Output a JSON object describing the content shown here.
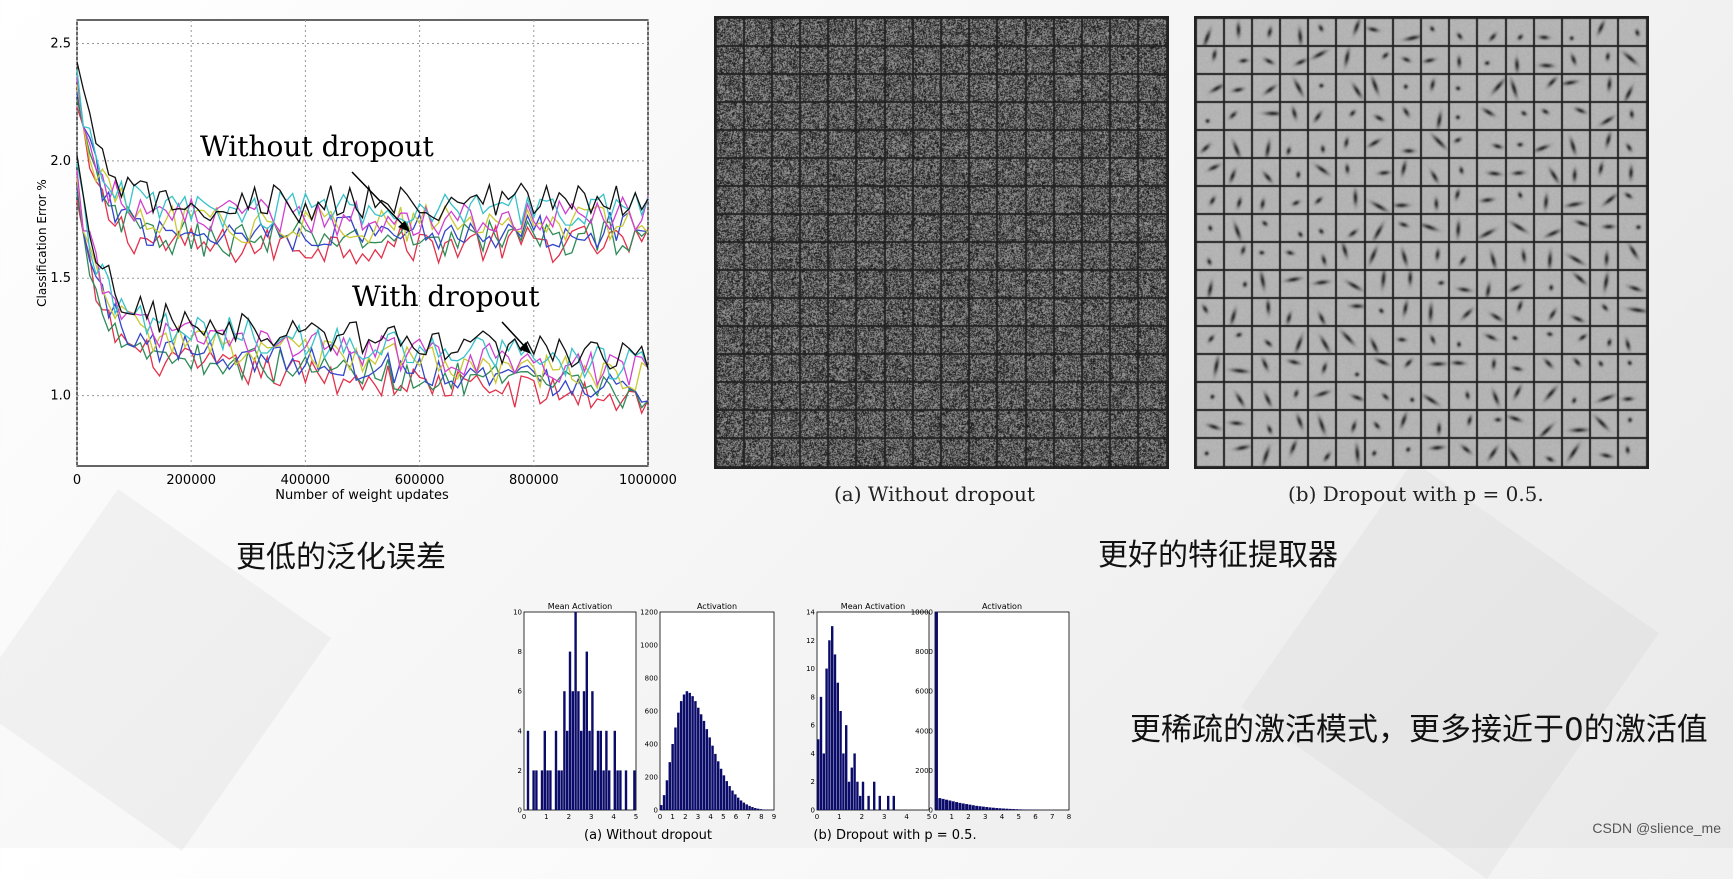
{
  "chart_data": [
    {
      "type": "line",
      "ylabel": "Classification Error %",
      "xlabel": "Number of weight updates",
      "xlim": [
        0,
        1000000
      ],
      "ylim": [
        0.7,
        2.6
      ],
      "xticks": [
        "0",
        "200000",
        "400000",
        "600000",
        "800000",
        "1000000"
      ],
      "yticks": [
        "1.0",
        "1.5",
        "2.0",
        "2.5"
      ],
      "grid": true,
      "annotations": [
        "Without dropout",
        "With dropout"
      ],
      "groups": [
        {
          "label": "Without dropout",
          "start": 2.3,
          "plateau": 1.72,
          "end": 1.74
        },
        {
          "label": "With dropout",
          "start": 1.9,
          "plateau": 1.25,
          "end": 1.07
        }
      ],
      "colors": [
        "#e2314a",
        "#2e8b57",
        "#3346c9",
        "#c9c934",
        "#d03fd0",
        "#37c2c9",
        "#111111"
      ]
    },
    {
      "type": "heatmap",
      "caption": "(a) Without dropout",
      "grid_size": [
        16,
        16
      ],
      "style": "noise"
    },
    {
      "type": "heatmap",
      "caption": "(b) Dropout with p = 0.5.",
      "grid_size": [
        16,
        16
      ],
      "style": "sparse-features"
    },
    {
      "type": "bar",
      "title": "Mean Activation",
      "xlim": [
        0,
        5
      ],
      "ylim": [
        0,
        10
      ],
      "xticks": [
        "0",
        "1",
        "2",
        "3",
        "4",
        "5"
      ],
      "yticks": [
        "0",
        "2",
        "4",
        "6",
        "8",
        "10"
      ],
      "values": [
        0,
        4,
        0,
        2,
        2,
        0,
        2,
        4,
        2,
        2,
        0,
        4,
        2,
        2,
        6,
        4,
        8,
        6,
        10,
        6,
        4,
        6,
        8,
        4,
        6,
        2,
        4,
        4,
        2,
        4,
        2,
        0,
        4,
        2,
        2,
        0,
        2,
        0,
        0,
        2
      ]
    },
    {
      "type": "bar",
      "title": "Activation",
      "xlim": [
        0,
        9
      ],
      "ylim": [
        0,
        1200
      ],
      "xticks": [
        "0",
        "1",
        "2",
        "3",
        "4",
        "5",
        "6",
        "7",
        "8",
        "9"
      ],
      "yticks": [
        "0",
        "200",
        "400",
        "600",
        "800",
        "1000",
        "1200"
      ],
      "values": [
        30,
        90,
        180,
        290,
        400,
        500,
        590,
        660,
        700,
        720,
        710,
        690,
        660,
        620,
        580,
        540,
        490,
        440,
        390,
        340,
        295,
        250,
        210,
        175,
        145,
        118,
        95,
        75,
        58,
        45,
        34,
        25,
        18,
        12,
        8,
        5,
        3,
        2,
        1,
        1
      ]
    },
    {
      "type": "bar",
      "title": "Mean Activation",
      "xlim": [
        0,
        5
      ],
      "ylim": [
        0,
        14
      ],
      "xticks": [
        "0",
        "1",
        "2",
        "3",
        "4",
        "5"
      ],
      "yticks": [
        "0",
        "2",
        "4",
        "6",
        "8",
        "10",
        "12",
        "14"
      ],
      "values": [
        5,
        8,
        4,
        10,
        12,
        13,
        11,
        9,
        7,
        4,
        6,
        2,
        3,
        4,
        2,
        1,
        2,
        0,
        1,
        0,
        2,
        0,
        1,
        0,
        0,
        1,
        0,
        1,
        0,
        0,
        0,
        0,
        0,
        0,
        0,
        0,
        0,
        0,
        0,
        0
      ]
    },
    {
      "type": "bar",
      "title": "Activation",
      "xlim": [
        0,
        8
      ],
      "ylim": [
        0,
        10000
      ],
      "xticks": [
        "0",
        "1",
        "2",
        "3",
        "4",
        "5",
        "6",
        "7",
        "8"
      ],
      "yticks": [
        "0",
        "2000",
        "4000",
        "6000",
        "8000",
        "10000"
      ],
      "values": [
        10000,
        600,
        560,
        520,
        480,
        440,
        400,
        360,
        330,
        300,
        270,
        240,
        210,
        190,
        170,
        150,
        130,
        115,
        100,
        88,
        76,
        66,
        56,
        48,
        40,
        33,
        27,
        22,
        18,
        14,
        11,
        8,
        6,
        4,
        3,
        2,
        1,
        1,
        0,
        0
      ]
    }
  ],
  "captions": {
    "filters_a": "(a) Without dropout",
    "filters_b": "(b) Dropout with p = 0.5.",
    "hist_a": "(a) Without dropout",
    "hist_b": "(b) Dropout with p = 0.5."
  },
  "labels": {
    "left": "更低的泛化误差",
    "middle": "更好的特征提取器",
    "bottom_right": "更稀疏的激活模式，更多接近于0的激活值"
  },
  "watermark": "CSDN @slience_me"
}
